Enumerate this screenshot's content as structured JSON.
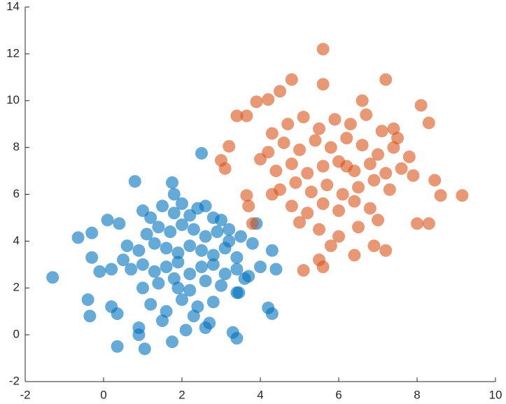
{
  "chart_data": {
    "type": "scatter",
    "xlim": [
      -2,
      10
    ],
    "xticks": [
      -2,
      0,
      2,
      4,
      6,
      8,
      10
    ],
    "ylim": [
      -2,
      14
    ],
    "yticks": [
      -2,
      0,
      2,
      4,
      6,
      8,
      10,
      12,
      14
    ],
    "series": [
      {
        "color": "#0072bd",
        "x": [
          -1.3,
          -0.65,
          -0.3,
          -0.3,
          -0.4,
          -0.35,
          0.35,
          1.05,
          1.75,
          0.8,
          1.75,
          1.8,
          2.5,
          3.3,
          3.4,
          4.3,
          4.4,
          4.3,
          3.9,
          0.35,
          0.9,
          0.9,
          2.1,
          2.6,
          0.2,
          0.1,
          -0.1,
          0.4,
          3.7,
          4.0,
          3.45,
          4.2,
          1.0,
          1.2,
          1.5,
          1.8,
          2.0,
          2.2,
          2.4,
          2.6,
          2.8,
          3.0,
          3.2,
          1.1,
          1.4,
          1.7,
          2.0,
          2.3,
          2.6,
          2.9,
          3.2,
          3.5,
          0.6,
          0.9,
          1.3,
          1.6,
          1.9,
          2.2,
          2.5,
          2.8,
          3.1,
          3.4,
          0.7,
          1.0,
          1.3,
          1.6,
          1.9,
          2.2,
          2.5,
          2.8,
          3.1,
          3.4,
          1.0,
          1.4,
          1.8,
          2.2,
          2.6,
          3.0,
          3.4,
          1.2,
          1.6,
          2.0,
          2.4,
          2.8,
          0.5,
          0.2,
          3.8,
          3.6,
          1.5,
          2.3,
          2.7,
          1.9
        ],
        "values": [
          2.45,
          4.15,
          4.35,
          3.3,
          1.5,
          0.8,
          -0.5,
          -0.6,
          -0.3,
          6.55,
          6.5,
          6.0,
          7.75,
          0.1,
          -0.15,
          0.9,
          2.8,
          3.6,
          4.75,
          0.9,
          0.3,
          0.0,
          0.2,
          0.3,
          1.2,
          4.9,
          2.7,
          4.75,
          2.5,
          2.9,
          1.8,
          1.15,
          5.3,
          5.0,
          5.5,
          5.2,
          5.6,
          5.1,
          5.4,
          5.5,
          5.0,
          4.9,
          4.5,
          4.3,
          4.6,
          4.4,
          4.7,
          4.5,
          4.2,
          4.4,
          4.0,
          4.2,
          3.8,
          3.6,
          3.9,
          3.7,
          3.5,
          3.8,
          3.6,
          3.4,
          3.7,
          3.3,
          2.8,
          3.0,
          2.7,
          2.9,
          3.1,
          2.6,
          2.9,
          3.0,
          2.6,
          2.8,
          2.0,
          2.2,
          2.4,
          1.9,
          2.3,
          2.1,
          1.8,
          1.3,
          1.0,
          1.5,
          1.2,
          1.4,
          3.2,
          2.8,
          3.9,
          2.4,
          0.6,
          0.8,
          0.5,
          2.0
        ]
      },
      {
        "color": "#d95319",
        "x": [
          5.6,
          5.6,
          4.8,
          7.2,
          4.5,
          3.9,
          3.4,
          3.65,
          3.0,
          3.2,
          3.1,
          3.7,
          3.8,
          5.1,
          5.6,
          5.5,
          6.4,
          6.9,
          7.2,
          8.0,
          8.3,
          9.15,
          8.3,
          8.45,
          8.6,
          3.65,
          4.2,
          7.4,
          4.3,
          4.7,
          5.1,
          5.5,
          5.9,
          6.3,
          6.7,
          7.1,
          7.5,
          4.2,
          4.6,
          5.0,
          5.4,
          5.8,
          6.2,
          6.6,
          7.0,
          7.4,
          7.8,
          4.4,
          4.8,
          5.2,
          5.6,
          6.0,
          6.4,
          6.8,
          7.2,
          7.6,
          4.5,
          4.9,
          5.3,
          5.7,
          6.1,
          6.5,
          6.9,
          7.3,
          4.8,
          5.2,
          5.6,
          6.0,
          6.4,
          6.8,
          5.0,
          5.5,
          6.0,
          6.5,
          7.0,
          4.0,
          4.3,
          7.9,
          8.1,
          6.2,
          5.8,
          6.6
        ],
        "values": [
          12.2,
          10.7,
          10.9,
          10.9,
          10.4,
          9.95,
          9.35,
          9.35,
          7.45,
          8.05,
          7.1,
          5.5,
          4.75,
          2.75,
          2.9,
          3.2,
          3.4,
          3.8,
          3.6,
          4.75,
          4.75,
          5.95,
          9.05,
          6.6,
          5.95,
          5.95,
          10.05,
          8.8,
          8.6,
          9.0,
          9.3,
          8.8,
          9.2,
          9.0,
          9.4,
          8.7,
          8.4,
          7.8,
          8.2,
          7.9,
          8.3,
          8.0,
          8.4,
          8.1,
          7.7,
          8.0,
          7.6,
          7.0,
          7.3,
          6.9,
          7.2,
          7.4,
          7.0,
          7.3,
          6.9,
          7.1,
          6.2,
          6.5,
          6.1,
          6.4,
          6.0,
          6.3,
          6.6,
          6.2,
          5.5,
          5.2,
          5.6,
          5.3,
          5.7,
          5.4,
          4.8,
          4.5,
          4.2,
          4.6,
          4.9,
          7.5,
          6.0,
          6.8,
          9.8,
          7.2,
          3.8,
          10.0
        ]
      }
    ]
  }
}
